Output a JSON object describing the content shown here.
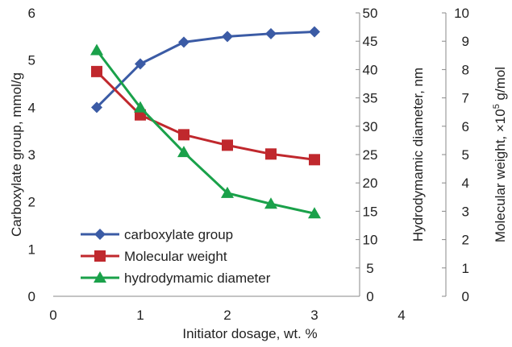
{
  "chart_data": {
    "type": "line",
    "xlabel": "Initiator dosage, wt. %",
    "x_ticks": [
      "0",
      "1",
      "2",
      "3",
      "4"
    ],
    "xlim": [
      0,
      4
    ],
    "grid": false,
    "legend_position": "bottom-left",
    "axes": [
      {
        "id": "left",
        "label": "Carboxylate  group, mmol/g",
        "ylim": [
          0,
          6
        ],
        "ticks": [
          "0",
          "1",
          "2",
          "3",
          "4",
          "5",
          "6"
        ]
      },
      {
        "id": "right1",
        "label": "Hydrodymamic diameter, nm",
        "ylim": [
          0,
          50
        ],
        "ticks": [
          "0",
          "5",
          "10",
          "15",
          "20",
          "25",
          "30",
          "35",
          "40",
          "45",
          "50"
        ]
      },
      {
        "id": "right2",
        "label_prefix": "Molecular weight, ×10",
        "label_sup": "5",
        "label_suffix": " g/mol",
        "ylim": [
          0,
          10
        ],
        "ticks": [
          "0",
          "1",
          "2",
          "3",
          "4",
          "5",
          "6",
          "7",
          "8",
          "9",
          "10"
        ]
      }
    ],
    "series": [
      {
        "name": "carboxylate group",
        "axis": "left",
        "color": "#3b5ba5",
        "marker": "diamond",
        "x": [
          0.5,
          1,
          1.5,
          2,
          2.5,
          3
        ],
        "values": [
          4.0,
          4.92,
          5.38,
          5.5,
          5.56,
          5.6
        ]
      },
      {
        "name": "Molecular weight",
        "axis": "right2",
        "color": "#c0282d",
        "marker": "square",
        "x": [
          0.5,
          1,
          1.5,
          2,
          2.5,
          3
        ],
        "values": [
          7.93,
          6.4,
          5.7,
          5.33,
          5.02,
          4.82
        ]
      },
      {
        "name": "hydrodymamic diameter",
        "axis": "right1",
        "color": "#1aa14a",
        "marker": "triangle",
        "x": [
          0.5,
          1,
          1.5,
          2,
          2.5,
          3
        ],
        "values": [
          43.4,
          33.3,
          25.4,
          18.2,
          16.3,
          14.6
        ]
      }
    ]
  }
}
